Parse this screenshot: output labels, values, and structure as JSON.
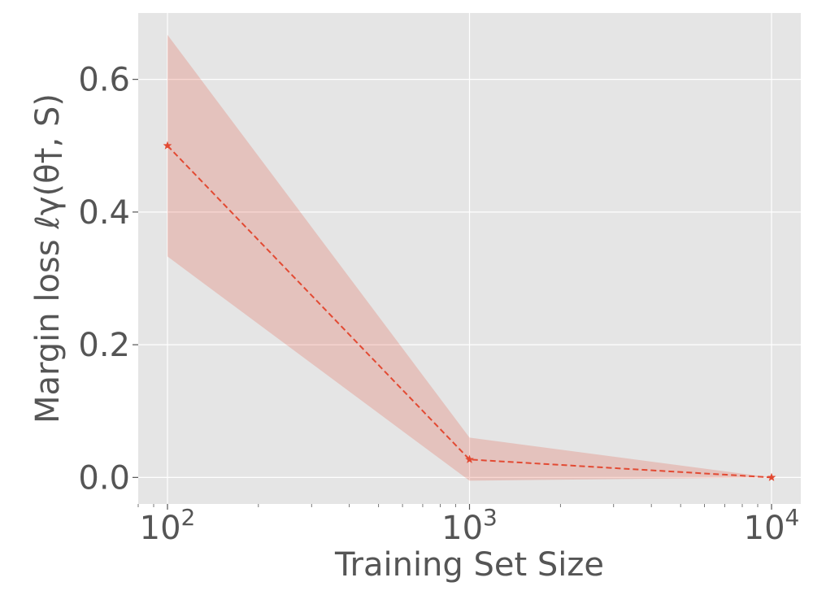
{
  "chart_data": {
    "type": "line",
    "xlabel": "Training Set Size",
    "ylabel": "Margin loss ℓγ(θ†, S)",
    "x_scale": "log",
    "xlim": [
      80,
      12500
    ],
    "ylim": [
      -0.04,
      0.7
    ],
    "grid": true,
    "x_ticks": [
      {
        "value": 100,
        "base": "10",
        "exp": "2"
      },
      {
        "value": 1000,
        "base": "10",
        "exp": "3"
      },
      {
        "value": 10000,
        "base": "10",
        "exp": "4"
      }
    ],
    "y_ticks": [
      {
        "value": 0.0,
        "label": "0.0"
      },
      {
        "value": 0.2,
        "label": "0.2"
      },
      {
        "value": 0.4,
        "label": "0.4"
      },
      {
        "value": 0.6,
        "label": "0.6"
      }
    ],
    "series": [
      {
        "x": [
          100,
          1000,
          10000
        ],
        "y": [
          0.5,
          0.027,
          0.0
        ],
        "lower": [
          0.333,
          -0.005,
          0.0
        ],
        "upper": [
          0.667,
          0.06,
          0.0
        ],
        "color": "#E24A33",
        "band_color": "#E24A33",
        "line_style": "dashed",
        "marker": "star"
      }
    ]
  },
  "colors": {
    "plot_background": "#E5E5E5",
    "grid": "#FFFFFF",
    "text": "#555555"
  }
}
